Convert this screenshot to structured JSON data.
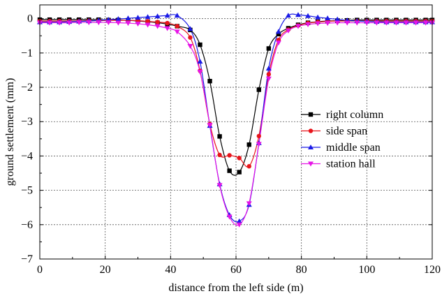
{
  "chart_data": {
    "type": "line",
    "title": "",
    "xlabel": "distance from the left side (m)",
    "ylabel": "ground settlement (mm)",
    "xlim": [
      0,
      120
    ],
    "ylim": [
      -7,
      0.4
    ],
    "xticks": [
      0,
      20,
      40,
      60,
      80,
      100,
      120
    ],
    "xtick_labels": [
      "0",
      "20",
      "40",
      "60",
      "80",
      "100",
      "120"
    ],
    "yticks": [
      0,
      -1,
      -2,
      -3,
      -4,
      -5,
      -6,
      -7
    ],
    "ytick_labels": [
      "0",
      "−1",
      "−2",
      "−3",
      "−4",
      "−5",
      "−6",
      "−7"
    ],
    "grid": true,
    "legend_position": "right",
    "series": [
      {
        "name": "right column",
        "marker": "square",
        "color": "#000000",
        "x": [
          0,
          3,
          6,
          9,
          12,
          15,
          18,
          21,
          24,
          27,
          30,
          33,
          36,
          39,
          42,
          46,
          49,
          52,
          55,
          58,
          61,
          64,
          67,
          70,
          73,
          76,
          79,
          82,
          85,
          88,
          91,
          94,
          97,
          100,
          103,
          106,
          109,
          112,
          115,
          118,
          120
        ],
        "y": [
          -0.03,
          -0.03,
          -0.03,
          -0.03,
          -0.03,
          -0.03,
          -0.03,
          -0.04,
          -0.04,
          -0.05,
          -0.07,
          -0.09,
          -0.12,
          -0.16,
          -0.22,
          -0.33,
          -0.76,
          -1.82,
          -3.43,
          -4.43,
          -4.47,
          -3.67,
          -2.07,
          -0.87,
          -0.45,
          -0.28,
          -0.18,
          -0.12,
          -0.09,
          -0.07,
          -0.06,
          -0.05,
          -0.04,
          -0.04,
          -0.04,
          -0.04,
          -0.04,
          -0.04,
          -0.04,
          -0.04,
          -0.04
        ]
      },
      {
        "name": "side span",
        "marker": "circle",
        "color": "#e8141b",
        "x": [
          0,
          3,
          6,
          9,
          12,
          15,
          18,
          21,
          24,
          27,
          30,
          33,
          36,
          39,
          42,
          46,
          49,
          52,
          55,
          58,
          61,
          64,
          67,
          70,
          73,
          76,
          79,
          82,
          85,
          88,
          91,
          94,
          97,
          100,
          103,
          106,
          109,
          112,
          115,
          118,
          120
        ],
        "y": [
          -0.07,
          -0.07,
          -0.07,
          -0.07,
          -0.07,
          -0.06,
          -0.06,
          -0.05,
          -0.05,
          -0.05,
          -0.06,
          -0.08,
          -0.1,
          -0.13,
          -0.22,
          -0.55,
          -1.52,
          -3.07,
          -3.97,
          -3.98,
          -4.06,
          -4.3,
          -3.42,
          -1.62,
          -0.62,
          -0.32,
          -0.2,
          -0.13,
          -0.1,
          -0.08,
          -0.07,
          -0.07,
          -0.07,
          -0.07,
          -0.07,
          -0.07,
          -0.07,
          -0.07,
          -0.07,
          -0.07,
          -0.07
        ]
      },
      {
        "name": "middle span",
        "marker": "triangle-up",
        "color": "#1a1ae6",
        "x": [
          0,
          3,
          6,
          9,
          12,
          15,
          18,
          21,
          24,
          27,
          30,
          33,
          36,
          39,
          42,
          46,
          49,
          52,
          55,
          58,
          61,
          64,
          67,
          70,
          73,
          76,
          79,
          82,
          85,
          88,
          91,
          94,
          97,
          100,
          103,
          106,
          109,
          112,
          115,
          118,
          120
        ],
        "y": [
          -0.1,
          -0.1,
          -0.1,
          -0.09,
          -0.08,
          -0.07,
          -0.05,
          -0.03,
          -0.01,
          0.01,
          0.03,
          0.05,
          0.07,
          0.09,
          0.09,
          -0.3,
          -1.25,
          -3.12,
          -4.82,
          -5.72,
          -5.9,
          -5.42,
          -3.62,
          -1.45,
          -0.38,
          0.09,
          0.11,
          0.08,
          0.04,
          0.01,
          -0.02,
          -0.05,
          -0.07,
          -0.08,
          -0.09,
          -0.1,
          -0.1,
          -0.1,
          -0.1,
          -0.1,
          -0.1
        ]
      },
      {
        "name": "station hall",
        "marker": "triangle-down",
        "color": "#e614e6",
        "x": [
          0,
          3,
          6,
          9,
          12,
          15,
          18,
          21,
          24,
          27,
          30,
          33,
          36,
          39,
          42,
          46,
          49,
          52,
          55,
          58,
          61,
          64,
          67,
          70,
          73,
          76,
          79,
          82,
          85,
          88,
          91,
          94,
          97,
          100,
          103,
          106,
          109,
          112,
          115,
          118,
          120
        ],
        "y": [
          -0.12,
          -0.12,
          -0.12,
          -0.12,
          -0.11,
          -0.11,
          -0.11,
          -0.11,
          -0.12,
          -0.13,
          -0.15,
          -0.18,
          -0.22,
          -0.28,
          -0.38,
          -0.8,
          -1.55,
          -3.1,
          -4.85,
          -5.77,
          -6.0,
          -5.38,
          -3.65,
          -1.75,
          -0.7,
          -0.35,
          -0.22,
          -0.17,
          -0.14,
          -0.13,
          -0.12,
          -0.12,
          -0.12,
          -0.12,
          -0.12,
          -0.12,
          -0.12,
          -0.12,
          -0.12,
          -0.12,
          -0.12
        ]
      }
    ]
  }
}
